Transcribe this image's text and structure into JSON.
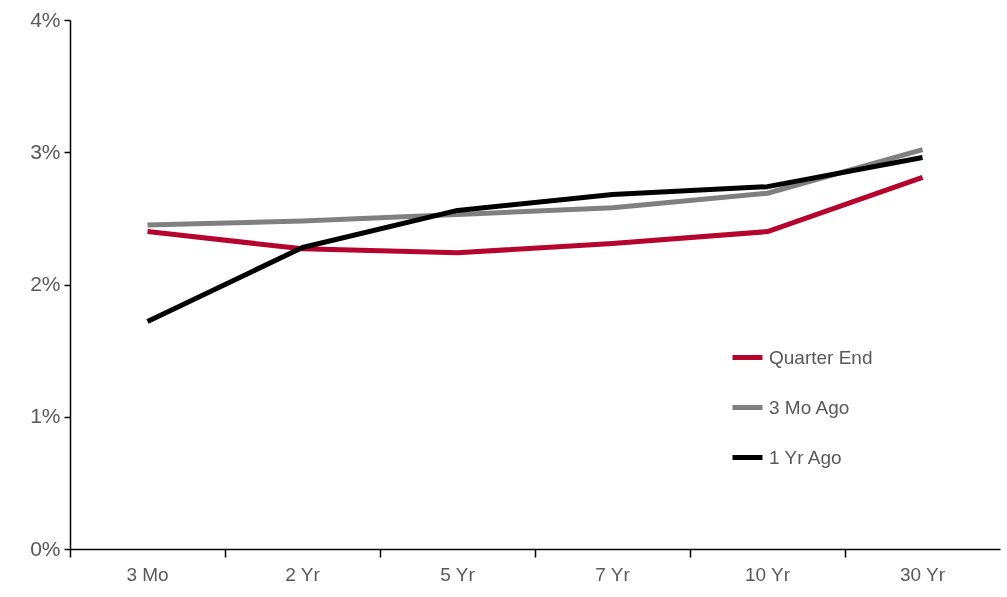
{
  "chart_data": {
    "type": "line",
    "categories": [
      "3 Mo",
      "2 Yr",
      "5 Yr",
      "7 Yr",
      "10 Yr",
      "30 Yr"
    ],
    "ylim": [
      0,
      4
    ],
    "yticks": [
      {
        "value": 0,
        "label": "0%"
      },
      {
        "value": 1,
        "label": "1%"
      },
      {
        "value": 2,
        "label": "2%"
      },
      {
        "value": 3,
        "label": "3%"
      },
      {
        "value": 4,
        "label": "4%"
      }
    ],
    "grid": false,
    "legend": "bottom right",
    "marker": "none",
    "line_style": "solid",
    "series": [
      {
        "name": "Quarter End",
        "color": "#b5052f",
        "values": [
          2.4,
          2.27,
          2.24,
          2.31,
          2.4,
          2.81
        ]
      },
      {
        "name": "3 Mo Ago",
        "color": "#808080",
        "values": [
          2.45,
          2.48,
          2.53,
          2.58,
          2.69,
          3.02
        ]
      },
      {
        "name": "1 Yr Ago",
        "color": "#000000",
        "values": [
          1.72,
          2.28,
          2.56,
          2.68,
          2.74,
          2.96
        ]
      }
    ]
  }
}
